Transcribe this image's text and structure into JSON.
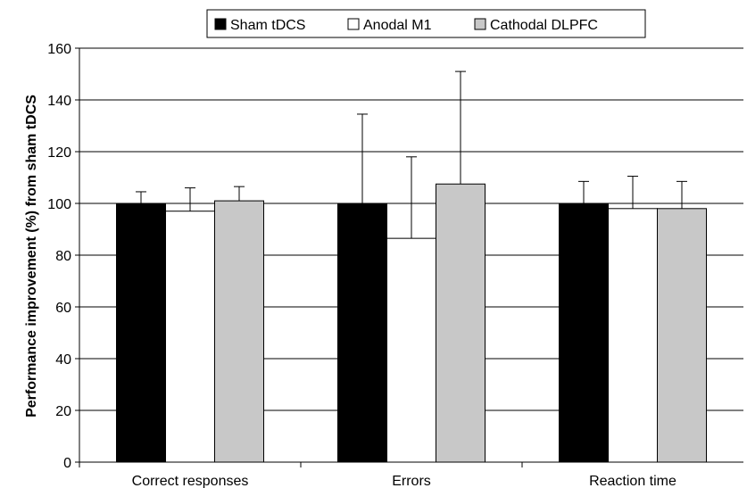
{
  "chart_data": {
    "type": "bar",
    "categories": [
      "Correct responses",
      "Errors",
      "Reaction time"
    ],
    "series": [
      {
        "name": "Sham tDCS",
        "color": "#000000",
        "values": [
          100,
          100,
          100
        ],
        "errors": [
          4.5,
          34.5,
          8.5
        ]
      },
      {
        "name": "Anodal M1",
        "color": "#ffffff",
        "values": [
          97,
          86.5,
          98
        ],
        "errors": [
          9,
          31.5,
          12.5
        ]
      },
      {
        "name": "Cathodal DLPFC",
        "color": "#c8c8c8",
        "values": [
          101,
          107.5,
          98
        ],
        "errors": [
          5.5,
          43.5,
          10.5
        ]
      }
    ],
    "ylabel": "Performance improvement (%) from sham tDCS",
    "xlabel": "",
    "ylim": [
      0,
      160
    ],
    "yticks": [
      0,
      20,
      40,
      60,
      80,
      100,
      120,
      140,
      160
    ],
    "grid": true,
    "legend_position": "top"
  }
}
